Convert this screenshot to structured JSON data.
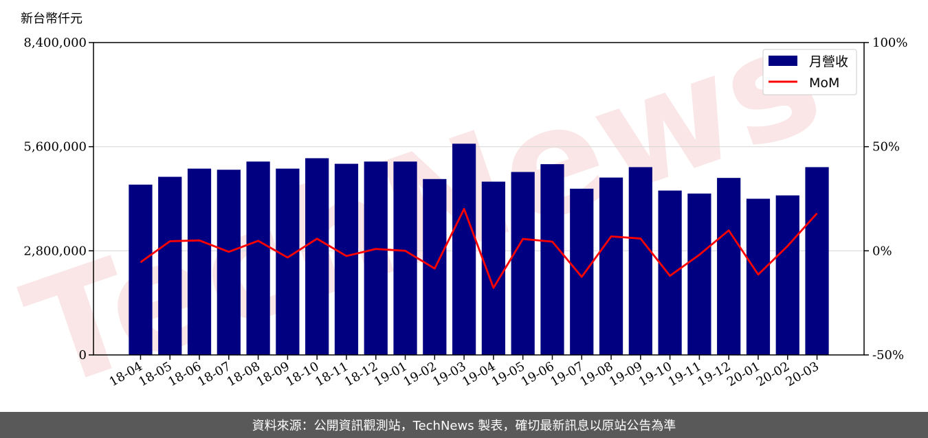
{
  "chart_data": {
    "type": "bar",
    "unit_label": "新台幣仟元",
    "categories": [
      "18-04",
      "18-05",
      "18-06",
      "18-07",
      "18-08",
      "18-09",
      "18-10",
      "18-11",
      "18-12",
      "19-01",
      "19-02",
      "19-03",
      "19-04",
      "19-05",
      "19-06",
      "19-07",
      "19-08",
      "19-09",
      "19-10",
      "19-11",
      "19-12",
      "20-01",
      "20-02",
      "20-03"
    ],
    "series": [
      {
        "name": "月營收",
        "axis": "left",
        "type": "bar",
        "color": "#000080",
        "values": [
          4580000,
          4790000,
          5010000,
          4980000,
          5200000,
          5010000,
          5290000,
          5140000,
          5200000,
          5200000,
          4730000,
          5680000,
          4660000,
          4920000,
          5130000,
          4470000,
          4770000,
          5050000,
          4420000,
          4340000,
          4760000,
          4200000,
          4290000,
          5050000
        ]
      },
      {
        "name": "MoM",
        "axis": "right",
        "type": "line",
        "color": "#ff0000",
        "values": [
          -5.5,
          4.6,
          5.0,
          -0.5,
          4.8,
          -3.2,
          5.8,
          -2.5,
          0.9,
          0.0,
          -8.5,
          20.1,
          -17.8,
          5.7,
          4.4,
          -12.5,
          6.9,
          5.9,
          -12.0,
          -1.9,
          9.8,
          -11.4,
          2.3,
          18.0
        ]
      }
    ],
    "left_axis": {
      "min": 0,
      "max": 8400000,
      "ticks": [
        0,
        2800000,
        5600000,
        8400000
      ],
      "tick_labels": [
        "0",
        "2,800,000",
        "5,600,000",
        "8,400,000"
      ]
    },
    "right_axis": {
      "min": -50,
      "max": 100,
      "ticks": [
        -50,
        0,
        50,
        100
      ],
      "tick_labels": [
        "-50%",
        "0%",
        "50%",
        "100%"
      ]
    },
    "grid": "horizontal",
    "legend": "top-right",
    "watermark": "TechNews",
    "footer": "資料來源：公開資訊觀測站，TechNews 製表，確切最新訊息以原站公告為準"
  }
}
